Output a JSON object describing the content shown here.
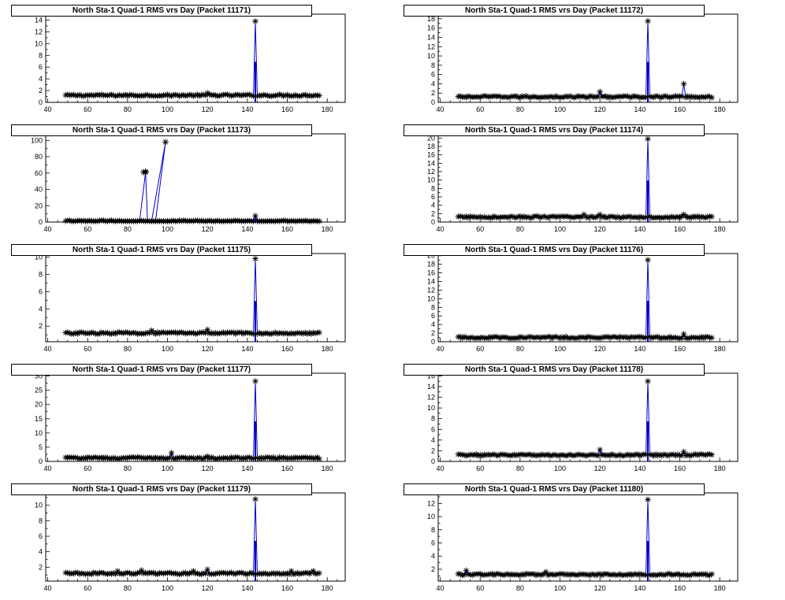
{
  "chart_data": [
    {
      "type": "line",
      "title": "North Sta-1 Quad-1 RMS vrs Day (Packet 11171)",
      "xlim": [
        39,
        189
      ],
      "ylim": [
        0,
        15
      ],
      "yticks": [
        0,
        2,
        4,
        6,
        8,
        10,
        12,
        14
      ],
      "xticks": [
        40,
        60,
        80,
        100,
        120,
        140,
        160,
        180
      ],
      "peak": [
        144,
        13.8
      ],
      "baseline": 1.2,
      "outliers": [
        [
          120,
          1.6
        ]
      ]
    },
    {
      "type": "line",
      "title": "North Sta-1 Quad-1 RMS vrs Day (Packet 11172)",
      "xlim": [
        39,
        189
      ],
      "ylim": [
        0,
        19
      ],
      "yticks": [
        0,
        2,
        4,
        6,
        8,
        10,
        12,
        14,
        16,
        18
      ],
      "xticks": [
        40,
        60,
        80,
        100,
        120,
        140,
        160,
        180
      ],
      "peak": [
        144,
        17.5
      ],
      "baseline": 1.2,
      "outliers": [
        [
          120,
          2.3
        ],
        [
          162,
          4.0
        ]
      ]
    },
    {
      "type": "line",
      "title": "North Sta-1 Quad-1 RMS vrs Day (Packet 11173)",
      "xlim": [
        39,
        189
      ],
      "ylim": [
        0,
        108
      ],
      "yticks": [
        0,
        20,
        40,
        60,
        80,
        100
      ],
      "xticks": [
        40,
        60,
        80,
        100,
        120,
        140,
        160,
        180
      ],
      "peak": [
        144,
        7.5
      ],
      "baseline": 1.0,
      "outliers": [],
      "extra_lines": [
        [
          [
            86,
            1
          ],
          [
            89,
            61
          ],
          [
            90,
            1
          ]
        ],
        [
          [
            92,
            1
          ],
          [
            99,
            98
          ],
          [
            94,
            1
          ]
        ],
        [
          [
            88,
            61
          ],
          [
            89,
            62
          ]
        ]
      ]
    },
    {
      "type": "line",
      "title": "North Sta-1 Quad-1 RMS vrs Day (Packet 11174)",
      "xlim": [
        39,
        189
      ],
      "ylim": [
        0,
        21
      ],
      "yticks": [
        0,
        2,
        4,
        6,
        8,
        10,
        12,
        14,
        16,
        18,
        20
      ],
      "xticks": [
        40,
        60,
        80,
        100,
        120,
        140,
        160,
        180
      ],
      "peak": [
        144,
        19.8
      ],
      "baseline": 1.2,
      "outliers": [
        [
          112,
          1.8
        ],
        [
          120,
          1.8
        ],
        [
          162,
          1.8
        ]
      ]
    },
    {
      "type": "line",
      "title": "North Sta-1 Quad-1 RMS vrs Day (Packet 11175)",
      "xlim": [
        39,
        189
      ],
      "ylim": [
        0.2,
        10.4
      ],
      "yticks": [
        2,
        4,
        6,
        8,
        10
      ],
      "xticks": [
        40,
        60,
        80,
        100,
        120,
        140,
        160,
        180
      ],
      "peak": [
        144,
        9.8
      ],
      "baseline": 1.2,
      "outliers": [
        [
          92,
          1.5
        ],
        [
          120,
          1.6
        ]
      ]
    },
    {
      "type": "line",
      "title": "North Sta-1 Quad-1 RMS vrs Day (Packet 11176)",
      "xlim": [
        39,
        189
      ],
      "ylim": [
        0,
        20.5
      ],
      "yticks": [
        0,
        2,
        4,
        6,
        8,
        10,
        12,
        14,
        16,
        18,
        20
      ],
      "xticks": [
        40,
        60,
        80,
        100,
        120,
        140,
        160,
        180
      ],
      "peak": [
        144,
        19.0
      ],
      "baseline": 1.0,
      "outliers": [
        [
          162,
          1.8
        ]
      ]
    },
    {
      "type": "line",
      "title": "North Sta-1 Quad-1 RMS vrs Day (Packet 11177)",
      "xlim": [
        39,
        189
      ],
      "ylim": [
        0,
        31
      ],
      "yticks": [
        0,
        5,
        10,
        15,
        20,
        25,
        30
      ],
      "xticks": [
        40,
        60,
        80,
        100,
        120,
        140,
        160,
        180
      ],
      "peak": [
        144,
        28.2
      ],
      "baseline": 1.2,
      "outliers": [
        [
          102,
          3.0
        ],
        [
          120,
          1.8
        ]
      ]
    },
    {
      "type": "line",
      "title": "North Sta-1 Quad-1 RMS vrs Day (Packet 11178)",
      "xlim": [
        39,
        189
      ],
      "ylim": [
        0,
        16.5
      ],
      "yticks": [
        0,
        2,
        4,
        6,
        8,
        10,
        12,
        14,
        16
      ],
      "xticks": [
        40,
        60,
        80,
        100,
        120,
        140,
        160,
        180
      ],
      "peak": [
        144,
        15.0
      ],
      "baseline": 1.2,
      "outliers": [
        [
          120,
          2.2
        ],
        [
          162,
          1.8
        ]
      ]
    },
    {
      "type": "line",
      "title": "North Sta-1 Quad-1 RMS vrs Day (Packet 11179)",
      "xlim": [
        39,
        189
      ],
      "ylim": [
        0.2,
        11.6
      ],
      "yticks": [
        2,
        4,
        6,
        8,
        10
      ],
      "xticks": [
        40,
        60,
        80,
        100,
        120,
        140,
        160,
        180
      ],
      "peak": [
        144,
        10.8
      ],
      "baseline": 1.2,
      "outliers": [
        [
          75,
          1.5
        ],
        [
          87,
          1.6
        ],
        [
          113,
          1.5
        ],
        [
          120,
          1.7
        ],
        [
          162,
          1.5
        ],
        [
          173,
          1.5
        ]
      ]
    },
    {
      "type": "line",
      "title": "North Sta-1 Quad-1 RMS vrs Day (Packet 11180)",
      "xlim": [
        39,
        189
      ],
      "ylim": [
        0.2,
        13.6
      ],
      "yticks": [
        2,
        4,
        6,
        8,
        10,
        12
      ],
      "xticks": [
        40,
        60,
        80,
        100,
        120,
        140,
        160,
        180
      ],
      "peak": [
        144,
        12.6
      ],
      "baseline": 1.2,
      "outliers": [
        [
          53,
          1.8
        ],
        [
          93,
          1.6
        ]
      ]
    }
  ]
}
